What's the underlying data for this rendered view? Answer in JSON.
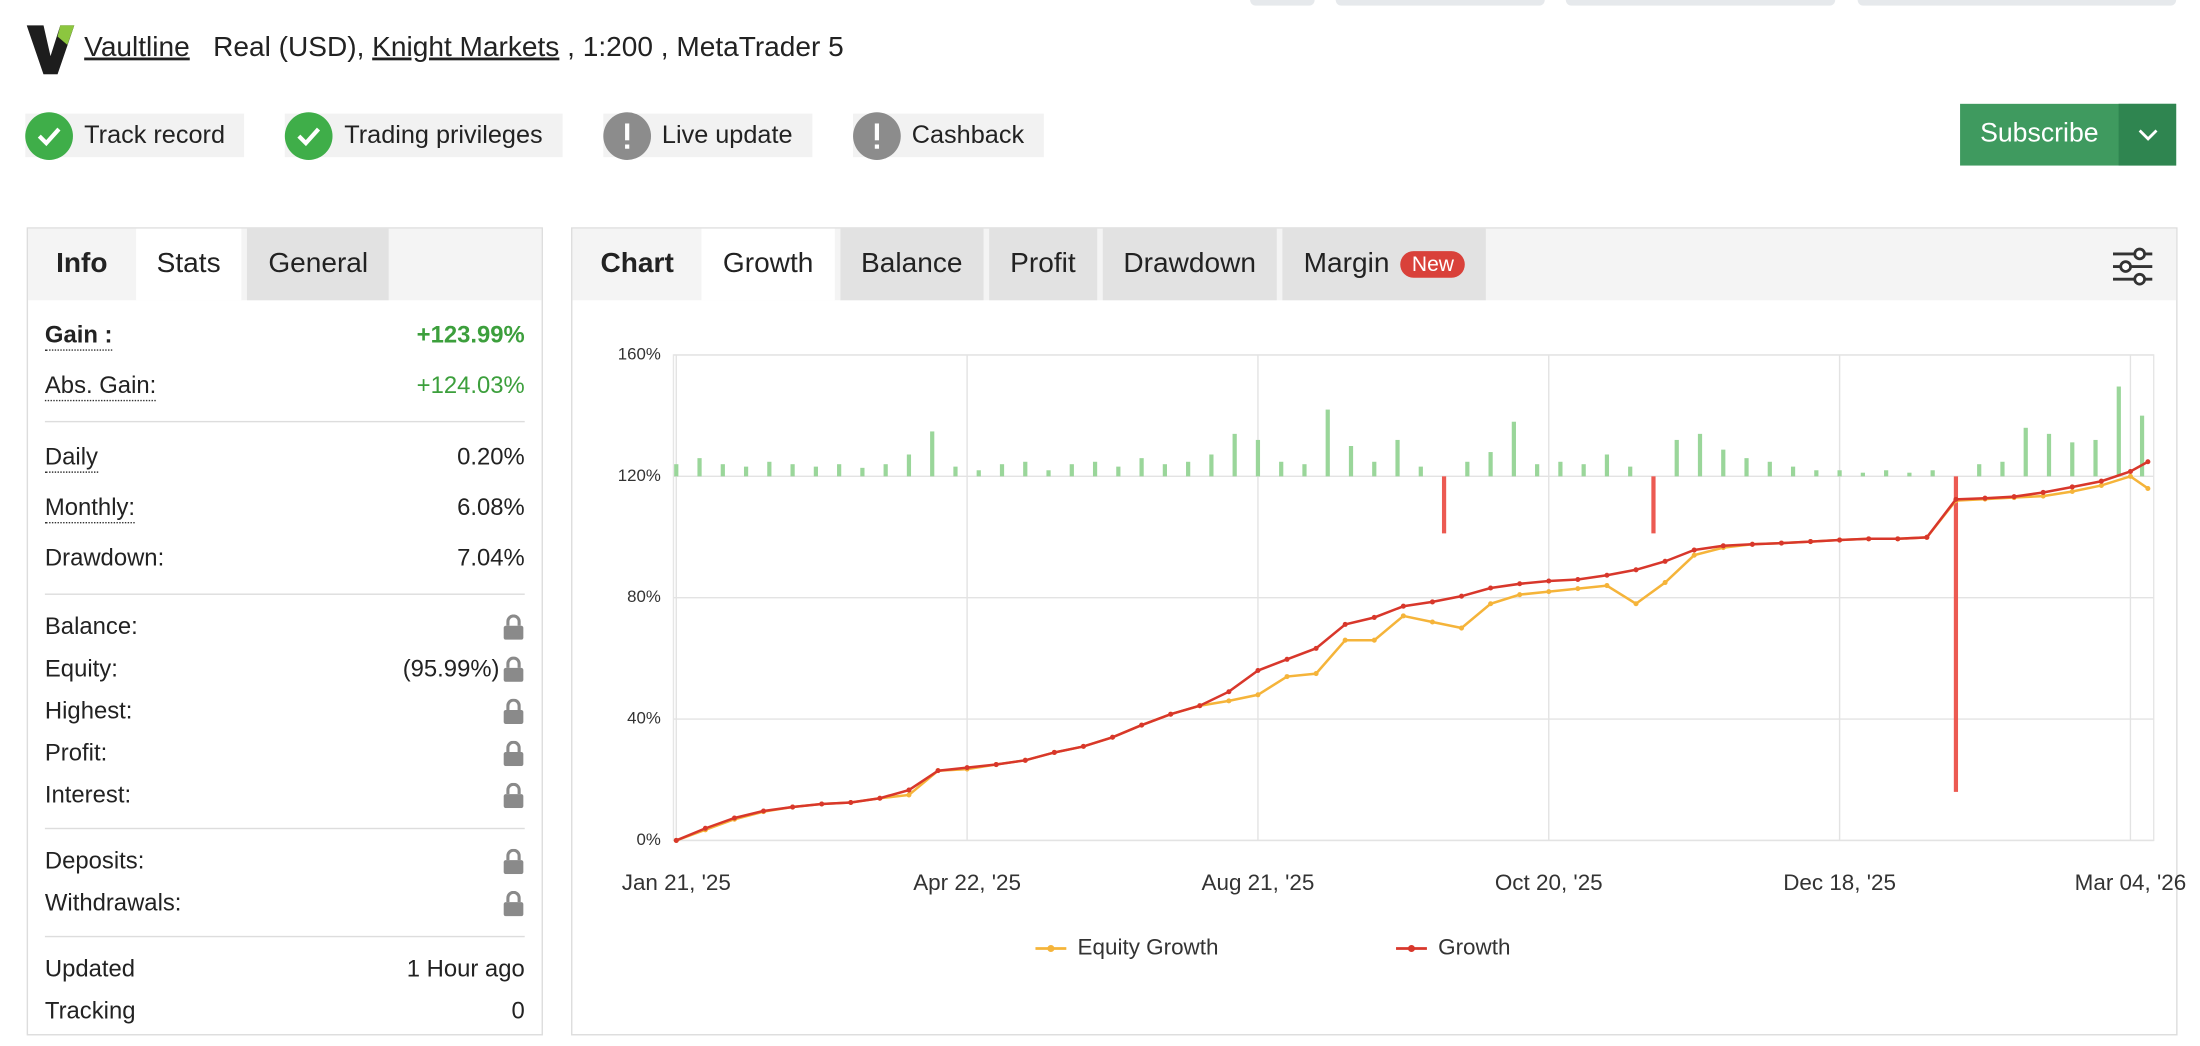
{
  "header": {
    "brand": "Vaultline",
    "account": "Real (USD),",
    "broker": "Knight Markets",
    "details": ", 1:200 , MetaTrader 5"
  },
  "badges": [
    {
      "label": "Track record",
      "verified": true
    },
    {
      "label": "Trading privileges",
      "verified": true
    },
    {
      "label": "Live update",
      "verified": false
    },
    {
      "label": "Cashback",
      "verified": false
    }
  ],
  "subscribe": "Subscribe",
  "stats": {
    "title": "Info",
    "tabs": [
      "Stats",
      "General"
    ],
    "active_tab": 0,
    "groups": [
      [
        {
          "label": "Gain :",
          "value": "+123.99%",
          "bold": true,
          "dotted": true,
          "color": "#3c9f3c"
        },
        {
          "label": "Abs. Gain:",
          "value": "+124.03%",
          "dotted": true,
          "color": "#3c9f3c"
        }
      ],
      [
        {
          "label": "Daily",
          "value": "0.20%",
          "dotted": true
        },
        {
          "label": "Monthly:",
          "value": "6.08%",
          "dotted": true
        },
        {
          "label": "Drawdown:",
          "value": "7.04%"
        }
      ],
      [
        {
          "label": "Balance:",
          "locked": true
        },
        {
          "label": "Equity:",
          "value": "(95.99%)",
          "locked": true
        },
        {
          "label": "Highest:",
          "locked": true
        },
        {
          "label": "Profit:",
          "locked": true
        },
        {
          "label": "Interest:",
          "locked": true
        }
      ],
      [
        {
          "label": "Deposits:",
          "locked": true
        },
        {
          "label": "Withdrawals:",
          "locked": true
        }
      ],
      [
        {
          "label": "Updated",
          "value": "1 Hour ago"
        },
        {
          "label": "Tracking",
          "value": "0"
        }
      ]
    ]
  },
  "chart_panel": {
    "title": "Chart",
    "tabs": [
      "Growth",
      "Balance",
      "Profit",
      "Drawdown",
      "Margin"
    ],
    "active_tab": 0,
    "badge": {
      "tab": 4,
      "label": "New"
    }
  },
  "chart_data": {
    "type": "line",
    "x": [
      0,
      5,
      10,
      15,
      20,
      25,
      30,
      35,
      40,
      45,
      50,
      55,
      60,
      65,
      70,
      75,
      80,
      85,
      90,
      95,
      100,
      105,
      110,
      115,
      120,
      125,
      130,
      135,
      140,
      145,
      150,
      155,
      160,
      165,
      170,
      175,
      180,
      185,
      190,
      195,
      200,
      205,
      210,
      215,
      220,
      225,
      230,
      235,
      240,
      245,
      250,
      253
    ],
    "xlim": [
      0,
      254
    ],
    "xticks": [
      {
        "value": 0,
        "label": "Jan 21, '25"
      },
      {
        "value": 50,
        "label": "Apr 22, '25"
      },
      {
        "value": 100,
        "label": "Aug 21, '25"
      },
      {
        "value": 150,
        "label": "Oct 20, '25"
      },
      {
        "value": 200,
        "label": "Dec 18, '25"
      },
      {
        "value": 250,
        "label": "Mar 04, '26"
      }
    ],
    "ylim": [
      0,
      160
    ],
    "yticks": [
      {
        "value": 0,
        "label": "0%"
      },
      {
        "value": 40,
        "label": "40%"
      },
      {
        "value": 80,
        "label": "80%"
      },
      {
        "value": 120,
        "label": "120%"
      },
      {
        "value": 160,
        "label": "160%"
      }
    ],
    "grid": true,
    "series": [
      {
        "name": "Equity Growth",
        "color": "#f5b43a",
        "values": [
          0,
          3.5,
          7,
          9.5,
          11,
          12,
          12.5,
          13.9,
          15,
          23,
          23.5,
          25,
          26.4,
          29,
          31,
          34,
          38,
          41.6,
          44.4,
          46,
          48,
          54,
          55,
          66,
          66,
          74,
          72,
          70,
          78,
          81,
          82,
          83,
          84,
          78,
          85,
          94,
          96.5,
          97.6,
          98,
          98.5,
          99,
          99.4,
          99.4,
          99.9,
          112,
          112.5,
          113,
          113.5,
          115,
          117,
          120,
          116
        ]
      },
      {
        "name": "Growth",
        "color": "#d8372b",
        "values": [
          0,
          4,
          7.4,
          9.7,
          11,
          12,
          12.5,
          13.9,
          16.6,
          23,
          24,
          25,
          26.4,
          29,
          31,
          34,
          38,
          41.6,
          44.4,
          49,
          56,
          59.7,
          63.3,
          71.2,
          73.5,
          77.2,
          78.6,
          80.5,
          83.2,
          84.6,
          85.5,
          86,
          87.4,
          89.2,
          92,
          95.7,
          97.1,
          97.6,
          98,
          98.5,
          99,
          99.4,
          99.4,
          99.9,
          112.4,
          112.8,
          113.3,
          114.7,
          116.5,
          118.4,
          121.6,
          124.8
        ]
      }
    ],
    "daily": {
      "axis": "y2",
      "color": "#9ad69a",
      "negative_color": "#ec5a52",
      "x": [
        0,
        4,
        8,
        12,
        16,
        20,
        24,
        28,
        32,
        36,
        40,
        44,
        48,
        52,
        56,
        60,
        64,
        68,
        72,
        76,
        80,
        84,
        88,
        92,
        96,
        100,
        104,
        108,
        112,
        116,
        120,
        124,
        128,
        132,
        136,
        140,
        144,
        148,
        152,
        156,
        160,
        164,
        168,
        172,
        176,
        180,
        184,
        188,
        192,
        196,
        200,
        204,
        208,
        212,
        216,
        220,
        224,
        228,
        232,
        236,
        240,
        244,
        248,
        252
      ],
      "values": [
        0.1,
        0.15,
        0.1,
        0.08,
        0.12,
        0.1,
        0.08,
        0.1,
        0.07,
        0.1,
        0.18,
        0.37,
        0.08,
        0.05,
        0.1,
        0.12,
        0.05,
        0.1,
        0.12,
        0.08,
        0.15,
        0.1,
        0.12,
        0.18,
        0.35,
        0.3,
        0.12,
        0.1,
        0.55,
        0.25,
        0.12,
        0.3,
        0.08,
        -0.47,
        0.12,
        0.2,
        0.45,
        0.1,
        0.12,
        0.1,
        0.18,
        0.08,
        -0.47,
        0.3,
        0.35,
        0.22,
        0.15,
        0.12,
        0.08,
        0.05,
        0.05,
        0.03,
        0.05,
        0.03,
        0.05,
        -2.6,
        0.1,
        0.12,
        0.4,
        0.35,
        0.28,
        0.3,
        0.74,
        0.5
      ]
    },
    "y2lim": [
      -3,
      1
    ]
  }
}
